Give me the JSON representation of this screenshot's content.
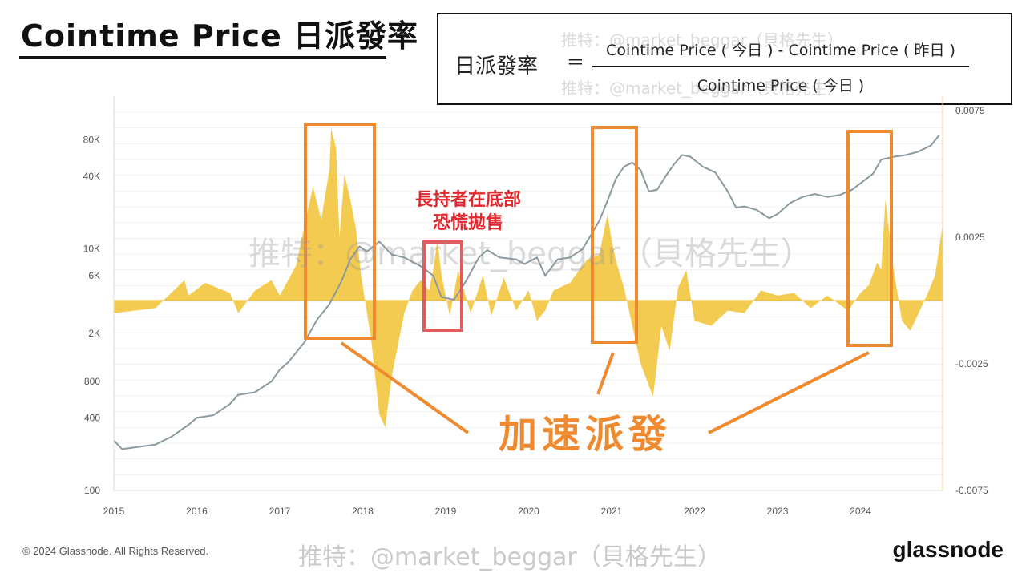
{
  "header": {
    "title": "Cointime Price 日派發率"
  },
  "formula": {
    "lhs": "日派發率",
    "eq": "=",
    "numerator": "Cointime Price ( 今日 ) - Cointime Price ( 昨日 )",
    "denominator": "Cointime Price ( 今日 )"
  },
  "watermark": "推特：@market_beggar（貝格先生）",
  "footer": {
    "copyright": "© 2024 Glassnode. All Rights Reserved.",
    "brand": "glassnode"
  },
  "annotations": {
    "panic_line1": "長持者在底部",
    "panic_line2": "恐慌拋售",
    "accelerate": "加速派發"
  },
  "colors": {
    "price_line": "#8a9aa0",
    "rate_fill": "#f2c232",
    "highlight_orange": "#f08a2e",
    "highlight_red": "#e05a5e"
  },
  "chart_data": {
    "type": "line",
    "x_range": [
      2015.0,
      2024.99
    ],
    "x_ticks": [
      "2015",
      "2016",
      "2017",
      "2018",
      "2019",
      "2020",
      "2021",
      "2022",
      "2023",
      "2024"
    ],
    "y_left": {
      "scale": "log",
      "range": [
        100,
        100000
      ],
      "ticks": [
        "100",
        "400",
        "800",
        "2K",
        "6K",
        "10K",
        "40K",
        "80K"
      ]
    },
    "y_right": {
      "scale": "linear",
      "range": [
        -0.0075,
        0.0075
      ],
      "ticks": [
        "-0.0075",
        "-0.0025",
        "0.0025",
        "0.0075"
      ]
    },
    "series": [
      {
        "axis": "left",
        "type": "line",
        "x": [
          2015.0,
          2015.1,
          2015.3,
          2015.5,
          2015.7,
          2015.9,
          2016.0,
          2016.2,
          2016.4,
          2016.5,
          2016.7,
          2016.9,
          2017.0,
          2017.1,
          2017.3,
          2017.45,
          2017.6,
          2017.75,
          2017.85,
          2017.96,
          2018.05,
          2018.2,
          2018.35,
          2018.5,
          2018.7,
          2018.85,
          2018.95,
          2019.1,
          2019.25,
          2019.4,
          2019.5,
          2019.65,
          2019.85,
          2019.95,
          2020.1,
          2020.2,
          2020.35,
          2020.5,
          2020.65,
          2020.75,
          2020.85,
          2020.95,
          2021.05,
          2021.15,
          2021.25,
          2021.35,
          2021.45,
          2021.55,
          2021.65,
          2021.75,
          2021.85,
          2021.95,
          2022.1,
          2022.25,
          2022.4,
          2022.5,
          2022.6,
          2022.75,
          2022.9,
          2023.0,
          2023.15,
          2023.3,
          2023.45,
          2023.6,
          2023.75,
          2023.9,
          2024.0,
          2024.15,
          2024.25,
          2024.4,
          2024.55,
          2024.7,
          2024.85,
          2024.95
        ],
        "y": [
          260,
          220,
          230,
          240,
          280,
          350,
          400,
          420,
          520,
          620,
          650,
          800,
          1000,
          1150,
          1700,
          2600,
          3500,
          5500,
          8200,
          10500,
          9500,
          11500,
          9000,
          8500,
          7200,
          6000,
          4000,
          3800,
          5500,
          8500,
          9800,
          8500,
          8200,
          7500,
          8500,
          6000,
          8200,
          8500,
          10000,
          13000,
          17000,
          25000,
          38000,
          48000,
          52000,
          45000,
          30000,
          31000,
          40000,
          50000,
          60000,
          58000,
          48000,
          43000,
          30000,
          22000,
          22500,
          21000,
          18000,
          19500,
          24000,
          27000,
          28500,
          27000,
          28000,
          31000,
          35000,
          42000,
          55000,
          58000,
          60000,
          64000,
          72000,
          88000
        ]
      },
      {
        "axis": "right",
        "type": "area",
        "x": [
          2015.0,
          2015.5,
          2015.85,
          2015.9,
          2016.1,
          2016.4,
          2016.5,
          2016.7,
          2016.9,
          2017.0,
          2017.1,
          2017.2,
          2017.3,
          2017.4,
          2017.5,
          2017.6,
          2017.62,
          2017.68,
          2017.72,
          2017.78,
          2017.85,
          2017.92,
          2017.98,
          2018.1,
          2018.2,
          2018.27,
          2018.35,
          2018.5,
          2018.6,
          2018.7,
          2018.8,
          2018.85,
          2018.9,
          2018.95,
          2019.05,
          2019.15,
          2019.3,
          2019.45,
          2019.55,
          2019.7,
          2019.85,
          2020.0,
          2020.1,
          2020.2,
          2020.3,
          2020.5,
          2020.7,
          2020.85,
          2020.95,
          2021.0,
          2021.05,
          2021.15,
          2021.25,
          2021.35,
          2021.5,
          2021.6,
          2021.7,
          2021.8,
          2021.9,
          2022.0,
          2022.2,
          2022.4,
          2022.6,
          2022.8,
          2023.0,
          2023.2,
          2023.4,
          2023.6,
          2023.85,
          2024.0,
          2024.1,
          2024.2,
          2024.25,
          2024.3,
          2024.4,
          2024.5,
          2024.6,
          2024.7,
          2024.8,
          2024.9,
          2024.99
        ],
        "y": [
          -0.0005,
          -0.0003,
          0.0008,
          0.0002,
          0.0007,
          0.0003,
          -0.0005,
          0.0004,
          0.0008,
          0.0002,
          0.0008,
          0.0014,
          0.003,
          0.0045,
          0.0032,
          0.0052,
          0.0068,
          0.006,
          0.0025,
          0.005,
          0.004,
          0.0028,
          0.001,
          -0.0015,
          -0.0045,
          -0.005,
          -0.003,
          -0.0005,
          0.0004,
          0.0008,
          0.0004,
          0.0012,
          0.0024,
          0.001,
          -0.0006,
          0.0012,
          -0.0005,
          0.001,
          -0.0006,
          0.0009,
          -0.0004,
          0.0004,
          -0.0008,
          -0.0004,
          0.0004,
          0.0007,
          0.0016,
          0.0018,
          0.0034,
          0.0024,
          0.0016,
          0.0005,
          -0.001,
          -0.0025,
          -0.0038,
          -0.001,
          -0.002,
          0.0005,
          0.0012,
          -0.0008,
          -0.001,
          -0.0004,
          -0.0005,
          0.0004,
          0.0002,
          0.0003,
          -0.0003,
          0.0002,
          -0.0004,
          0.0003,
          0.0006,
          0.0015,
          0.0012,
          0.004,
          0.0012,
          -0.0008,
          -0.0012,
          -0.0005,
          0.0002,
          0.001,
          0.003
        ]
      }
    ]
  }
}
